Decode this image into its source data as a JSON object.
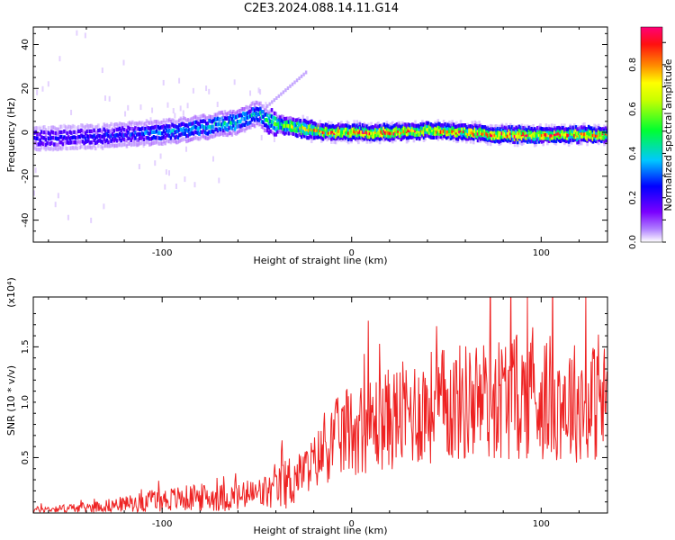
{
  "title": "C2E3.2024.088.14.11.G14",
  "chart_data": [
    {
      "type": "heatmap",
      "xlabel": "Height of straight line (km)",
      "ylabel": "Frequency (Hz)",
      "xlim": [
        -168,
        135
      ],
      "ylim": [
        -50,
        48
      ],
      "x_ticks": [
        -100,
        0,
        100
      ],
      "y_ticks": [
        40,
        20,
        0,
        -20,
        -40
      ],
      "colorbar": {
        "label": "Normalized spectral amplitude",
        "range": [
          0.0,
          0.97
        ],
        "ticks": [
          0.0,
          0.2,
          0.4,
          0.6,
          0.8
        ],
        "colors": [
          "#ffffff",
          "#8a00ff",
          "#0000ff",
          "#00c8ff",
          "#00ff00",
          "#ffff00",
          "#ff8800",
          "#ff0000",
          "#ff0077"
        ]
      },
      "ridge": {
        "x": [
          -168,
          -140,
          -120,
          -100,
          -80,
          -60,
          -50,
          -45,
          -40,
          -30,
          -20,
          -10,
          0,
          20,
          40,
          60,
          80,
          100,
          120,
          135
        ],
        "frequency_hz": [
          -3,
          -2,
          -1,
          0,
          2,
          5,
          9,
          5,
          4,
          2,
          1,
          0,
          0,
          0,
          1,
          0,
          -1,
          -1,
          -1,
          -1
        ],
        "amplitude": [
          0.25,
          0.25,
          0.3,
          0.35,
          0.4,
          0.45,
          0.4,
          0.5,
          0.6,
          0.7,
          0.8,
          0.85,
          0.9,
          0.9,
          0.85,
          0.9,
          0.95,
          0.9,
          0.85,
          0.85
        ]
      }
    },
    {
      "type": "line",
      "xlabel": "Height of straight line (km)",
      "ylabel": "SNR (10 * v/v)",
      "scale_label": "(x10⁴)",
      "xlim": [
        -168,
        135
      ],
      "ylim": [
        0,
        1.95
      ],
      "x_ticks": [
        -100,
        0,
        100
      ],
      "y_ticks": [
        0.5,
        1.0,
        1.5
      ],
      "color": "#ee2222",
      "trend": {
        "x": [
          -168,
          -140,
          -120,
          -100,
          -80,
          -60,
          -40,
          -30,
          -20,
          -10,
          0,
          20,
          40,
          60,
          80,
          100,
          120,
          135
        ],
        "y": [
          0.03,
          0.05,
          0.08,
          0.12,
          0.14,
          0.14,
          0.2,
          0.32,
          0.45,
          0.65,
          0.75,
          0.85,
          0.95,
          1.0,
          1.05,
          1.05,
          1.0,
          1.0
        ]
      }
    }
  ]
}
